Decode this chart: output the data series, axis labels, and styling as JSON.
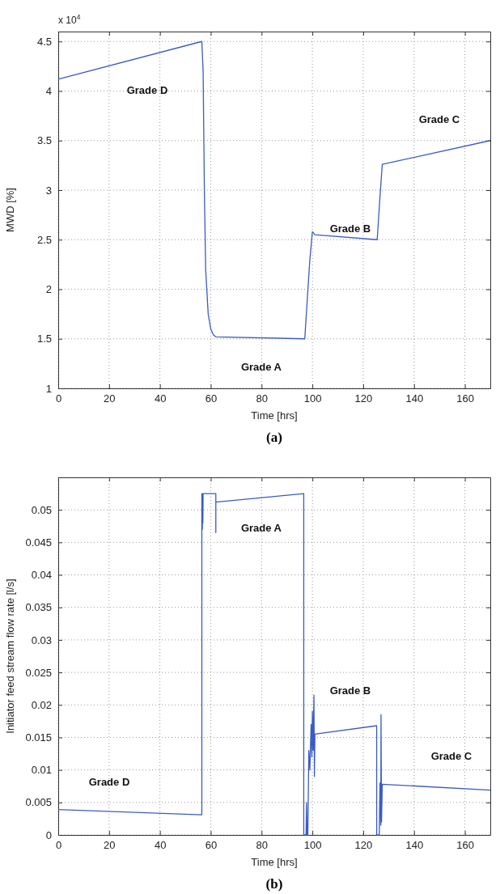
{
  "chart_data": [
    {
      "type": "line",
      "title": "(a)",
      "xlabel": "Time [hrs]",
      "ylabel": "MWD [%]",
      "xlim": [
        0,
        170
      ],
      "xticks": [
        0,
        20,
        40,
        60,
        80,
        100,
        120,
        140,
        160
      ],
      "ylim": [
        1,
        4.6
      ],
      "yticks": [
        1,
        1.5,
        2,
        2.5,
        3,
        3.5,
        4,
        4.5
      ],
      "grid": true,
      "line_style": "solid",
      "series": [
        {
          "color": "#3b5bc6",
          "x": [
            0,
            56.5,
            57,
            57.5,
            58,
            59,
            60,
            61,
            62,
            97,
            98,
            99,
            100,
            101,
            125.5,
            126.5,
            127.5,
            170
          ],
          "values": [
            4.12,
            4.5,
            4.2,
            3,
            2.2,
            1.75,
            1.6,
            1.54,
            1.52,
            1.5,
            1.9,
            2.3,
            2.58,
            2.55,
            2.5,
            2.9,
            3.26,
            3.5
          ]
        }
      ],
      "annotations": [
        "x 10$^{4}$",
        "Grade D",
        "Grade C",
        "Grade B",
        "Grade A"
      ]
    },
    {
      "type": "line",
      "title": "(b)",
      "xlabel": "Time [hrs]",
      "ylabel": "Initiator feed stream flow rate [l/s]",
      "xlim": [
        0,
        170
      ],
      "xticks": [
        0,
        20,
        40,
        60,
        80,
        100,
        120,
        140,
        160
      ],
      "ylim": [
        0,
        0.055
      ],
      "yticks": [
        0,
        0.005,
        0.01,
        0.015,
        0.02,
        0.025,
        0.03,
        0.035,
        0.04,
        0.045,
        0.05
      ],
      "grid": true,
      "line_style": "solid",
      "series": [
        {
          "color": "#3b5bc6",
          "x": [
            0,
            56.5,
            56.5,
            56.7,
            56.8,
            56.9,
            57,
            62,
            62,
            62,
            96.6,
            96.6,
            97.5,
            97.7,
            97.9,
            98.2,
            98.6,
            99,
            99.5,
            99.8,
            100,
            100.3,
            100.6,
            100.8,
            101,
            125.3,
            125.3,
            126.3,
            126.6,
            126.9,
            127,
            127.2,
            127.5,
            170
          ],
          "values": [
            0.0039,
            0.0031,
            0.0525,
            0.047,
            0.0525,
            0.048,
            0.0525,
            0.0525,
            0.0465,
            0.0512,
            0.0525,
            0,
            0,
            0.005,
            0,
            0,
            0.013,
            0.01,
            0.017,
            0.012,
            0.019,
            0.013,
            0.0215,
            0.009,
            0.0155,
            0.0168,
            0,
            0,
            0.008,
            0.0015,
            0.0185,
            0.002,
            0.0078,
            0.0069
          ]
        }
      ],
      "annotations": [
        "Grade A",
        "Grade B",
        "Grade C",
        "Grade D"
      ]
    }
  ]
}
